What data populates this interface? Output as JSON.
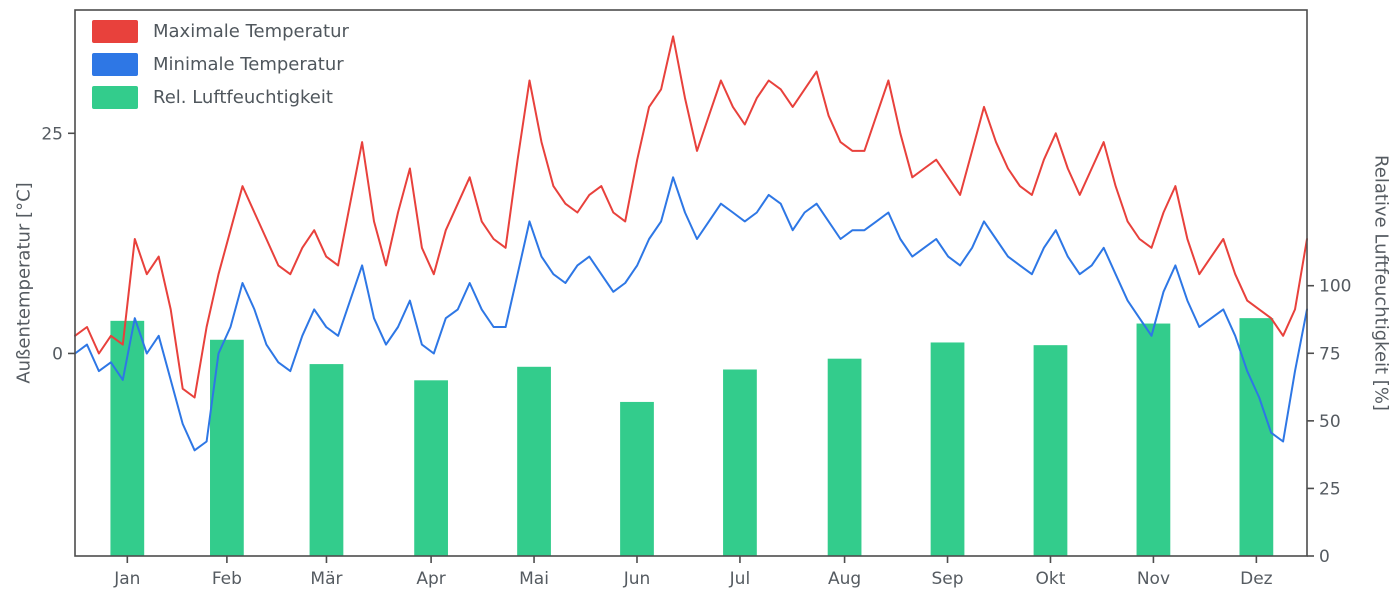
{
  "figure": {
    "background": "#ffffff",
    "text_color": "#555b61",
    "spine_color": "#4d4d4d",
    "tick_color": "#4d4d4d"
  },
  "axes": {
    "left": {
      "label": "Außentemperatur [°C]",
      "ticks": [
        0,
        25
      ],
      "range": [
        -23,
        39
      ]
    },
    "right": {
      "label": "Relative Luftfeuchtigkeit [%]",
      "ticks": [
        0,
        25,
        50,
        75,
        100
      ],
      "range": [
        0,
        202
      ]
    },
    "x": {
      "tick_labels": [
        "Jan",
        "Feb",
        "Mär",
        "Apr",
        "Mai",
        "Jun",
        "Jul",
        "Aug",
        "Sep",
        "Okt",
        "Nov",
        "Dez"
      ],
      "tick_days": [
        15.5,
        45,
        74.5,
        105.5,
        136,
        166.5,
        197,
        228,
        258.5,
        289,
        319.5,
        350
      ],
      "range_days": [
        0,
        365
      ]
    }
  },
  "chart_data": {
    "type": "line",
    "note": "Daily outdoor temperature (max/min, left axis, °C) over one year, sampled ~every 3.5 days, plus monthly mean relative humidity bars (right axis, %)",
    "series": [
      {
        "name": "Maximale Temperatur",
        "type": "line",
        "color": "#e8413c",
        "axis": "left",
        "values": [
          2,
          3,
          0,
          2,
          1,
          13,
          9,
          11,
          5,
          -4,
          -5,
          3,
          9,
          14,
          19,
          16,
          13,
          10,
          9,
          12,
          14,
          11,
          10,
          17,
          24,
          15,
          10,
          16,
          21,
          12,
          9,
          14,
          17,
          20,
          15,
          13,
          12,
          22,
          31,
          24,
          19,
          17,
          16,
          18,
          19,
          16,
          15,
          22,
          28,
          30,
          36,
          29,
          23,
          27,
          31,
          28,
          26,
          29,
          31,
          30,
          28,
          30,
          32,
          27,
          24,
          23,
          23,
          27,
          31,
          25,
          20,
          21,
          22,
          20,
          18,
          23,
          28,
          24,
          21,
          19,
          18,
          22,
          25,
          21,
          18,
          21,
          24,
          19,
          15,
          13,
          12,
          16,
          19,
          13,
          9,
          11,
          13,
          9,
          6,
          5,
          4,
          2,
          5,
          13
        ]
      },
      {
        "name": "Minimale Temperatur",
        "type": "line",
        "color": "#2e77e5",
        "axis": "left",
        "values": [
          0,
          1,
          -2,
          -1,
          -3,
          4,
          0,
          2,
          -3,
          -8,
          -11,
          -10,
          0,
          3,
          8,
          5,
          1,
          -1,
          -2,
          2,
          5,
          3,
          2,
          6,
          10,
          4,
          1,
          3,
          6,
          1,
          0,
          4,
          5,
          8,
          5,
          3,
          3,
          9,
          15,
          11,
          9,
          8,
          10,
          11,
          9,
          7,
          8,
          10,
          13,
          15,
          20,
          16,
          13,
          15,
          17,
          16,
          15,
          16,
          18,
          17,
          14,
          16,
          17,
          15,
          13,
          14,
          14,
          15,
          16,
          13,
          11,
          12,
          13,
          11,
          10,
          12,
          15,
          13,
          11,
          10,
          9,
          12,
          14,
          11,
          9,
          10,
          12,
          9,
          6,
          4,
          2,
          7,
          10,
          6,
          3,
          4,
          5,
          2,
          -2,
          -5,
          -9,
          -10,
          -2,
          5
        ]
      },
      {
        "name": "Rel. Luftfeuchtigkeit",
        "type": "bar",
        "color": "#33cc8c",
        "axis": "right",
        "categories": [
          "Jan",
          "Feb",
          "Mär",
          "Apr",
          "Mai",
          "Jun",
          "Jul",
          "Aug",
          "Sep",
          "Okt",
          "Nov",
          "Dez"
        ],
        "values": [
          87,
          80,
          71,
          65,
          70,
          57,
          69,
          73,
          79,
          78,
          86,
          88
        ],
        "bar_width_days": 10
      }
    ]
  }
}
